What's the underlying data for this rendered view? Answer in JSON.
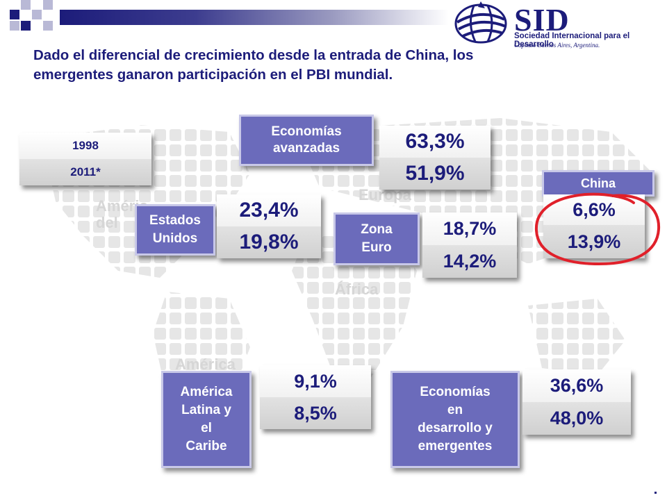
{
  "header": {
    "title_line1": "Dado el diferencial de crecimiento desde la entrada de China, los",
    "title_line2": "emergentes ganaron participación en el PBI mundial."
  },
  "logo": {
    "name": "SID",
    "subtitle": "Sociedad Internacional para el Desarrollo",
    "chapter": "Capítulo Buenos Aires, Argentina."
  },
  "map_labels": {
    "america_norte_a": "Améric",
    "america_norte_b": "del",
    "europa": "Europa",
    "africa": "África",
    "america_sur": "América"
  },
  "legend": {
    "year1": "1998",
    "year2": "2011*"
  },
  "groups": {
    "avanzadas": {
      "label_l1": "Economías",
      "label_l2": "avanzadas",
      "v1998": "63,3%",
      "v2011": "51,9%"
    },
    "eeuu": {
      "label_l1": "Estados",
      "label_l2": "Unidos",
      "v1998": "23,4%",
      "v2011": "19,8%"
    },
    "zona_euro": {
      "label_l1": "Zona",
      "label_l2": "Euro",
      "v1998": "18,7%",
      "v2011": "14,2%"
    },
    "china": {
      "label": "China",
      "v1998": "6,6%",
      "v2011": "13,9%"
    },
    "latam": {
      "label_l1": "América",
      "label_l2": "Latina y",
      "label_l3": "el",
      "label_l4": "Caribe",
      "v1998": "9,1%",
      "v2011": "8,5%"
    },
    "emergentes": {
      "label_l1": "Economías",
      "label_l2": "en",
      "label_l3": "desarrollo y",
      "label_l4": "emergentes",
      "v1998": "36,6%",
      "v2011": "48,0%"
    }
  },
  "colors": {
    "navy": "#1c1c7a",
    "label_box": "#6b6bbb",
    "highlight_circle": "#e0202a"
  }
}
